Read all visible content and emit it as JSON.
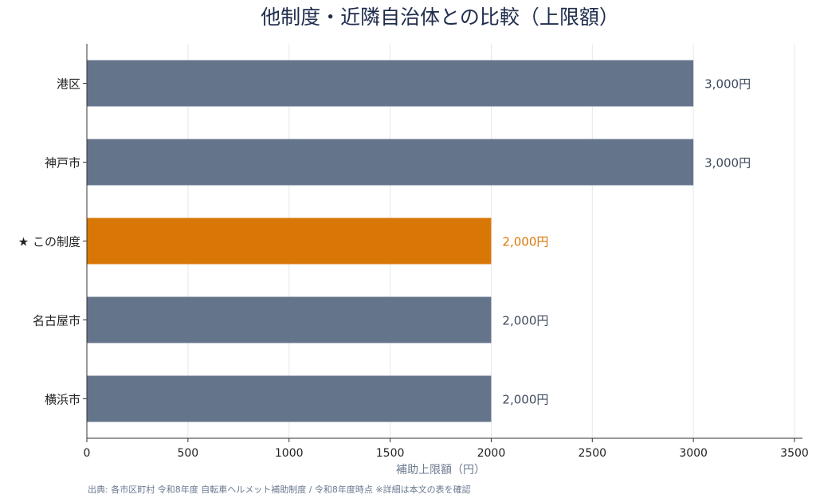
{
  "chart_data": {
    "type": "bar",
    "orientation": "horizontal",
    "title": "他制度・近隣自治体との比較（上限額）",
    "xlabel": "補助上限額（円）",
    "ylabel": "",
    "xlim": [
      0,
      3500
    ],
    "xticks": [
      0,
      500,
      1000,
      1500,
      2000,
      2500,
      3000,
      3500
    ],
    "grid": "vertical",
    "categories": [
      "港区",
      "神戸市",
      "★ この制度",
      "名古屋市",
      "横浜市"
    ],
    "values": [
      3000,
      3000,
      2000,
      2000,
      2000
    ],
    "value_labels": [
      "3,000円",
      "3,000円",
      "2,000円",
      "2,000円",
      "2,000円"
    ],
    "highlight_index": 2,
    "colors": {
      "default_bar": "#64748b",
      "highlight_bar": "#d97706",
      "default_label": "#3d4a5e",
      "highlight_label": "#d97706",
      "grid": "#e5e7eb",
      "axis": "#333333"
    }
  },
  "footnote": "出典: 各市区町村 令和8年度 自転車ヘルメット補助制度 / 令和8年度時点 ※詳細は本文の表を確認"
}
